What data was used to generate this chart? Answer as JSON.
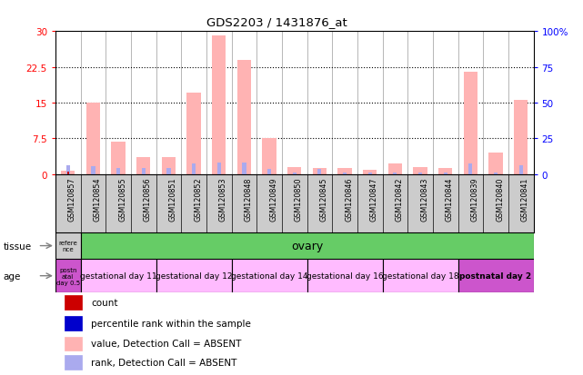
{
  "title": "GDS2203 / 1431876_at",
  "samples": [
    "GSM120857",
    "GSM120854",
    "GSM120855",
    "GSM120856",
    "GSM120851",
    "GSM120852",
    "GSM120853",
    "GSM120848",
    "GSM120849",
    "GSM120850",
    "GSM120845",
    "GSM120846",
    "GSM120847",
    "GSM120842",
    "GSM120843",
    "GSM120844",
    "GSM120839",
    "GSM120840",
    "GSM120841"
  ],
  "value_ABSENT": [
    0.7,
    15.0,
    6.8,
    3.5,
    3.5,
    17.0,
    29.0,
    24.0,
    7.5,
    1.5,
    1.2,
    1.2,
    0.9,
    2.2,
    1.5,
    1.2,
    21.5,
    4.5,
    15.5
  ],
  "rank_ABSENT": [
    1.8,
    1.7,
    1.2,
    1.2,
    1.2,
    2.2,
    2.3,
    2.3,
    1.0,
    0.3,
    1.0,
    0.3,
    0.3,
    0.3,
    0.3,
    0.3,
    2.2,
    0.3,
    1.8
  ],
  "count": [
    0.4,
    0.0,
    0.0,
    0.0,
    0.0,
    0.0,
    0.0,
    0.0,
    0.0,
    0.0,
    0.0,
    0.0,
    0.0,
    0.0,
    0.0,
    0.0,
    0.0,
    0.0,
    0.0
  ],
  "ylim_left": [
    0,
    30
  ],
  "ylim_right": [
    0,
    100
  ],
  "yticks_left": [
    0,
    7.5,
    15,
    22.5,
    30
  ],
  "ytick_labels_left": [
    "0",
    "7.5",
    "15",
    "22.5",
    "30"
  ],
  "yticks_right": [
    0,
    25,
    50,
    75,
    100
  ],
  "ytick_labels_right": [
    "0",
    "25",
    "50",
    "75",
    "100%"
  ],
  "color_value_absent": "#ffb3b3",
  "color_rank_absent": "#aaaaee",
  "color_count": "#cc0000",
  "color_rank_present": "#0000cc",
  "tissue_ref_label": "refere\nnce",
  "tissue_ovary_label": "ovary",
  "tissue_ref_color": "#cccccc",
  "tissue_ovary_color": "#66cc66",
  "age_groups": [
    {
      "label": "postn\natal\nday 0.5",
      "start": 0,
      "end": 1,
      "color": "#cc55cc"
    },
    {
      "label": "gestational day 11",
      "start": 1,
      "end": 4,
      "color": "#ffbbff"
    },
    {
      "label": "gestational day 12",
      "start": 4,
      "end": 7,
      "color": "#ffbbff"
    },
    {
      "label": "gestational day 14",
      "start": 7,
      "end": 10,
      "color": "#ffbbff"
    },
    {
      "label": "gestational day 16",
      "start": 10,
      "end": 13,
      "color": "#ffbbff"
    },
    {
      "label": "gestational day 18",
      "start": 13,
      "end": 16,
      "color": "#ffbbff"
    },
    {
      "label": "postnatal day 2",
      "start": 16,
      "end": 19,
      "color": "#cc55cc"
    }
  ],
  "legend_items": [
    {
      "label": "count",
      "color": "#cc0000"
    },
    {
      "label": "percentile rank within the sample",
      "color": "#0000cc"
    },
    {
      "label": "value, Detection Call = ABSENT",
      "color": "#ffb3b3"
    },
    {
      "label": "rank, Detection Call = ABSENT",
      "color": "#aaaaee"
    }
  ],
  "bg_xtick_color": "#cccccc"
}
